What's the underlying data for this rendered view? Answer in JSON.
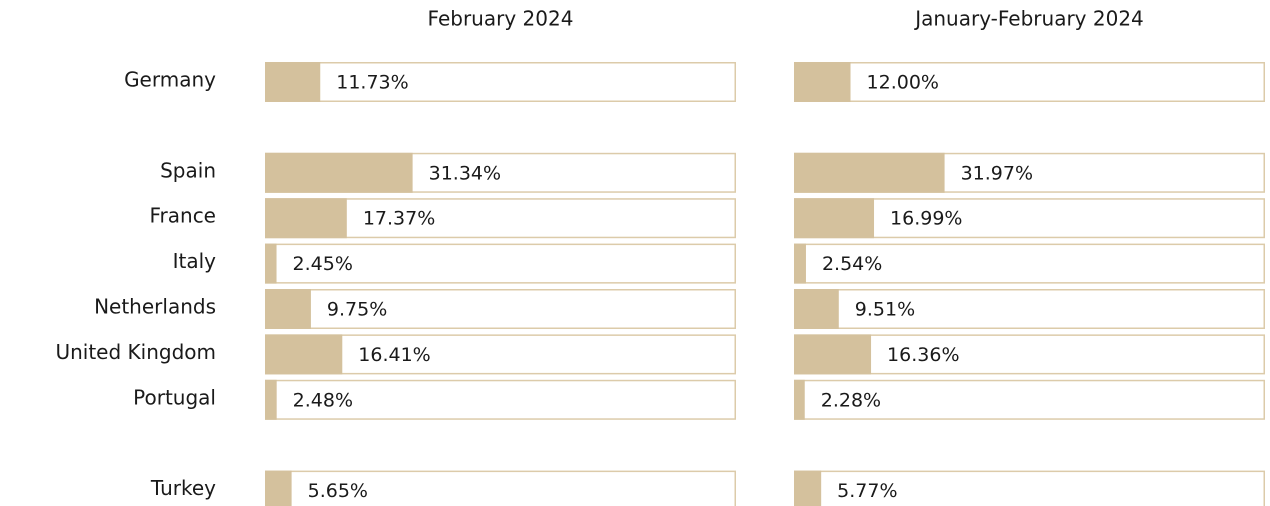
{
  "chart_data": [
    {
      "type": "bar",
      "title": "February 2024",
      "categories": [
        "Germany",
        "Spain",
        "France",
        "Italy",
        "Netherlands",
        "United Kingdom",
        "Portugal",
        "Turkey"
      ],
      "values": [
        11.73,
        31.34,
        17.37,
        2.45,
        9.75,
        16.41,
        2.48,
        5.65
      ],
      "value_labels": [
        "11.73%",
        "31.34%",
        "17.37%",
        "2.45%",
        "9.75%",
        "16.41%",
        "2.48%",
        "5.65%"
      ],
      "xlim": [
        0,
        100
      ],
      "color": "#d4c19d"
    },
    {
      "type": "bar",
      "title": "January-February 2024",
      "values": [
        12.0,
        31.97,
        16.99,
        2.54,
        9.51,
        16.36,
        2.28,
        5.77
      ],
      "value_labels": [
        "12.00%",
        "31.97%",
        "16.99%",
        "2.54%",
        "9.51%",
        "16.36%",
        "2.28%",
        "5.77%"
      ],
      "xlim": [
        0,
        100
      ],
      "color": "#d4c19d"
    }
  ]
}
